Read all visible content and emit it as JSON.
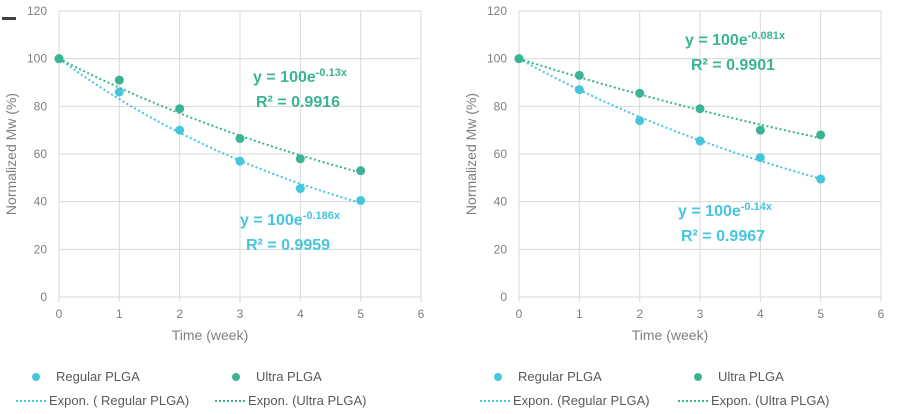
{
  "colors": {
    "regular": "#45c6dd",
    "ultra": "#3bb394",
    "grid": "#d9d9d9",
    "axis": "#7f7f7f"
  },
  "legend": {
    "regular_label": "Regular PLGA",
    "ultra_label": "Ultra PLGA",
    "expon_regular_left": "Expon. ( Regular PLGA)",
    "expon_ultra_left": "Expon. (Ultra PLGA)",
    "expon_regular_right": "Expon. (Regular PLGA)",
    "expon_ultra_right": "Expon. (Ultra PLGA)"
  },
  "chart_data": [
    {
      "type": "scatter",
      "xlabel": "Time (week)",
      "ylabel": "Normalized Mw (%)",
      "xlim": [
        0,
        6
      ],
      "ylim": [
        0,
        120
      ],
      "xticks": [
        "0",
        "1",
        "2",
        "3",
        "4",
        "5",
        "6"
      ],
      "yticks": [
        "0",
        "20",
        "40",
        "60",
        "80",
        "100",
        "120"
      ],
      "grid": true,
      "legend_position": "bottom",
      "series": [
        {
          "name": "Regular PLGA",
          "color": "#45c6dd",
          "x": [
            0,
            1,
            2,
            3,
            4,
            5
          ],
          "y": [
            100,
            86,
            70,
            57,
            45.5,
            40.5
          ],
          "fit_k": 0.186,
          "fit_label": "Expon. ( Regular PLGA)"
        },
        {
          "name": "Ultra PLGA",
          "color": "#3bb394",
          "x": [
            0,
            1,
            2,
            3,
            4,
            5
          ],
          "y": [
            100,
            91,
            79,
            66.5,
            58,
            53
          ],
          "fit_k": 0.13,
          "fit_label": "Expon. (Ultra PLGA)"
        }
      ],
      "annotations": [
        {
          "series": 1,
          "base": "y = 100e",
          "exp": "-0.13x",
          "r2": "R² = 0.9916"
        },
        {
          "series": 0,
          "base": "y = 100e",
          "exp": "-0.186x",
          "r2": "R² = 0.9959"
        }
      ]
    },
    {
      "type": "scatter",
      "xlabel": "Time (week)",
      "ylabel": "Normalized Mw (%)",
      "xlim": [
        0,
        6
      ],
      "ylim": [
        0,
        120
      ],
      "xticks": [
        "0",
        "1",
        "2",
        "3",
        "4",
        "5",
        "6"
      ],
      "yticks": [
        "0",
        "20",
        "40",
        "60",
        "80",
        "100",
        "120"
      ],
      "grid": true,
      "legend_position": "bottom",
      "series": [
        {
          "name": "Regular PLGA",
          "color": "#45c6dd",
          "x": [
            0,
            1,
            2,
            3,
            4,
            5
          ],
          "y": [
            100,
            87,
            74,
            65.5,
            58.5,
            49.5
          ],
          "fit_k": 0.14,
          "fit_label": "Expon. (Regular PLGA)"
        },
        {
          "name": "Ultra PLGA",
          "color": "#3bb394",
          "x": [
            0,
            1,
            2,
            3,
            4,
            5
          ],
          "y": [
            100,
            93,
            85.5,
            79,
            70,
            68
          ],
          "fit_k": 0.081,
          "fit_label": "Expon. (Ultra PLGA)"
        }
      ],
      "annotations": [
        {
          "series": 1,
          "base": "y = 100e",
          "exp": "-0.081x",
          "r2": "R² = 0.9901"
        },
        {
          "series": 0,
          "base": "y = 100e",
          "exp": "-0.14x",
          "r2": "R² = 0.9967"
        }
      ]
    }
  ]
}
